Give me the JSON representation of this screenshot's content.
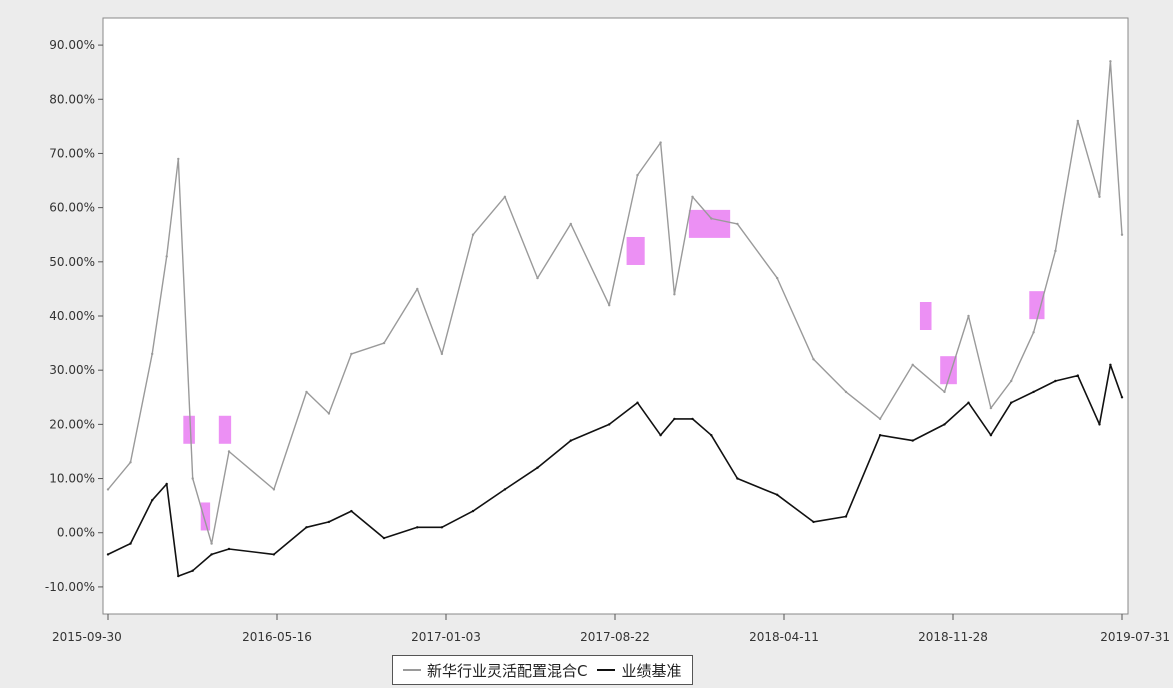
{
  "chart_data": {
    "type": "line",
    "title": "",
    "xlabel": "",
    "ylabel": "",
    "x_tick_labels": [
      "2015-09-30",
      "2016-05-16",
      "2017-01-03",
      "2017-08-22",
      "2018-04-11",
      "2018-11-28",
      "2019-07-31"
    ],
    "y_tick_labels": [
      "-10.00%",
      "0.00%",
      "10.00%",
      "20.00%",
      "30.00%",
      "40.00%",
      "50.00%",
      "60.00%",
      "70.00%",
      "80.00%",
      "90.00%"
    ],
    "ylim": [
      -15,
      95
    ],
    "grid": false,
    "legend_position": "bottom-center",
    "x_dates": [
      "2015-09-30",
      "2015-10-31",
      "2015-11-30",
      "2015-12-20",
      "2016-01-05",
      "2016-01-25",
      "2016-02-20",
      "2016-03-15",
      "2016-05-16",
      "2016-06-30",
      "2016-07-31",
      "2016-08-31",
      "2016-10-15",
      "2016-11-30",
      "2017-01-03",
      "2017-02-15",
      "2017-03-31",
      "2017-05-15",
      "2017-06-30",
      "2017-08-22",
      "2017-09-30",
      "2017-11-01",
      "2017-11-20",
      "2017-12-15",
      "2018-01-10",
      "2018-02-15",
      "2018-04-11",
      "2018-05-31",
      "2018-07-15",
      "2018-08-31",
      "2018-10-15",
      "2018-11-28",
      "2018-12-31",
      "2019-01-31",
      "2019-02-28",
      "2019-03-31",
      "2019-04-30",
      "2019-05-31",
      "2019-06-30",
      "2019-07-15",
      "2019-07-31"
    ],
    "series": [
      {
        "name": "新华行业灵活配置混合C",
        "color": "#9a9a9a",
        "values": [
          8,
          13,
          33,
          51,
          69,
          10,
          -2,
          15,
          8,
          26,
          22,
          33,
          35,
          45,
          33,
          55,
          62,
          47,
          57,
          42,
          66,
          72,
          44,
          62,
          58,
          57,
          47,
          32,
          26,
          21,
          31,
          26,
          40,
          23,
          28,
          37,
          52,
          76,
          62,
          87,
          55
        ]
      },
      {
        "name": "业绩基准",
        "color": "#111111",
        "values": [
          -4,
          -2,
          6,
          9,
          -8,
          -7,
          -4,
          -3,
          -4,
          1,
          2,
          4,
          -1,
          1,
          1,
          4,
          8,
          12,
          17,
          20,
          24,
          18,
          21,
          21,
          18,
          10,
          7,
          2,
          3,
          18,
          17,
          20,
          24,
          18,
          24,
          26,
          28,
          29,
          20,
          31,
          25
        ]
      }
    ],
    "highlights": [
      {
        "start": "2016-01-12",
        "end": "2016-01-28",
        "y": 19
      },
      {
        "start": "2016-02-05",
        "end": "2016-02-18",
        "y": 3
      },
      {
        "start": "2016-03-01",
        "end": "2016-03-18",
        "y": 19
      },
      {
        "start": "2017-09-15",
        "end": "2017-10-10",
        "y": 52
      },
      {
        "start": "2017-12-10",
        "end": "2018-02-05",
        "y": 57
      },
      {
        "start": "2018-10-25",
        "end": "2018-11-10",
        "y": 40
      },
      {
        "start": "2018-11-22",
        "end": "2018-12-15",
        "y": 30
      },
      {
        "start": "2019-03-25",
        "end": "2019-04-15",
        "y": 42
      }
    ],
    "highlight_color": "#e56bf0"
  },
  "legend": {
    "items": [
      {
        "label": "新华行业灵活配置混合C",
        "color": "#9a9a9a"
      },
      {
        "label": "业绩基准",
        "color": "#111111"
      }
    ]
  }
}
